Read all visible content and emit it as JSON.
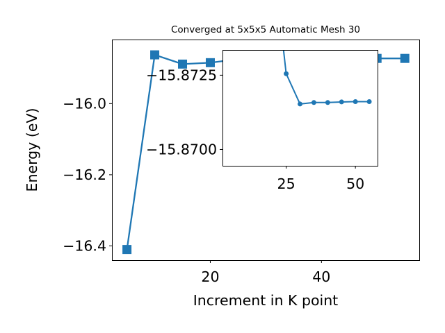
{
  "chart_data": [
    {
      "type": "line",
      "title": "Converged at 5x5x5 Automatic Mesh 30",
      "xlabel": "Increment in K point",
      "ylabel": "Energy (eV)",
      "xlim": [
        2.3,
        57.6
      ],
      "ylim": [
        -16.44,
        -15.82
      ],
      "xticks": [
        20,
        40
      ],
      "xtick_labels": [
        "20",
        "40"
      ],
      "yticks": [
        -16.0,
        -16.2,
        -16.4
      ],
      "ytick_labels": [
        "−16.0",
        "−16.2",
        "−16.4"
      ],
      "marker": "square",
      "color": "#1f77b4",
      "grid": false,
      "series": [
        {
          "x": [
            5,
            10,
            15,
            20,
            25,
            30,
            35,
            40,
            45,
            50,
            55
          ],
          "y": [
            -16.41,
            -15.863,
            -15.889,
            -15.885,
            -15.875,
            -15.873,
            -15.873,
            -15.873,
            -15.873,
            -15.873,
            -15.873
          ]
        }
      ]
    },
    {
      "type": "line",
      "title": "",
      "xlabel": "",
      "ylabel": "",
      "xlim": [
        2,
        58
      ],
      "ylim": [
        -15.86945,
        -15.87335
      ],
      "xticks": [
        25,
        50
      ],
      "xtick_labels": [
        "25",
        "50"
      ],
      "yticks": [
        -15.8725,
        -15.87
      ],
      "ytick_labels": [
        "−15.8725",
        "−15.8700"
      ],
      "marker": "circle",
      "color": "#1f77b4",
      "grid": false,
      "series": [
        {
          "x": [
            23.5,
            25,
            30,
            35,
            40,
            45,
            50,
            55
          ],
          "y": [
            -15.8738,
            -15.87255,
            -15.87153,
            -15.87158,
            -15.87158,
            -15.8716,
            -15.87161,
            -15.87161
          ]
        }
      ]
    }
  ]
}
